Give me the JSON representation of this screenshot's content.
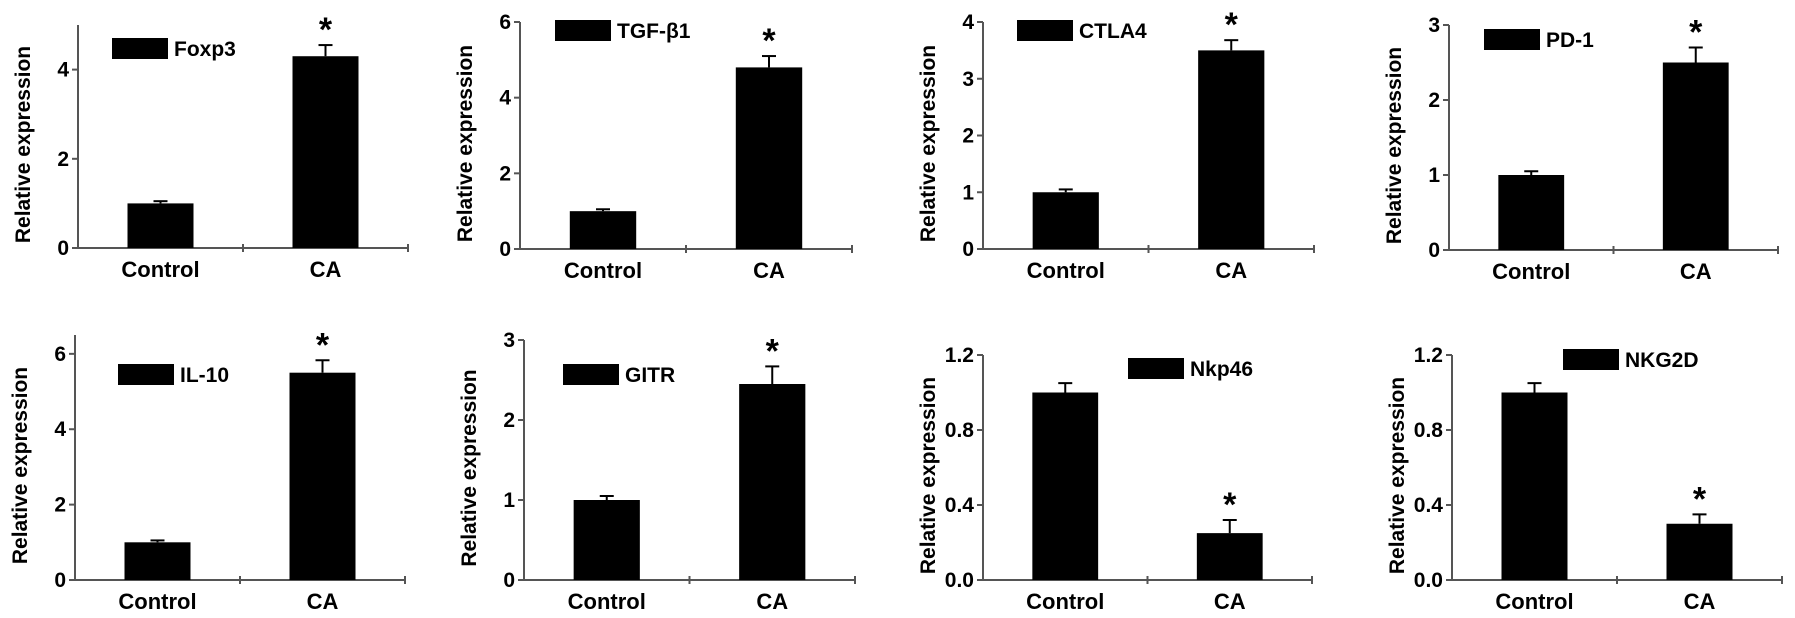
{
  "chart_data": [
    {
      "type": "bar",
      "legend": "Foxp3",
      "ylabel": "Relative expression",
      "categories": [
        "Control",
        "CA"
      ],
      "values": [
        1.0,
        4.3
      ],
      "errors": [
        0.05,
        0.25
      ],
      "significance": [
        "",
        "*"
      ],
      "ylim": [
        0,
        5
      ],
      "yticks": [
        "0",
        "2",
        "4"
      ],
      "legend_position": "top-left",
      "color": "#000000"
    },
    {
      "type": "bar",
      "legend": "TGF-β1",
      "ylabel": "Relative expression",
      "categories": [
        "Control",
        "CA"
      ],
      "values": [
        1.0,
        4.8
      ],
      "errors": [
        0.05,
        0.3
      ],
      "significance": [
        "",
        "*"
      ],
      "ylim": [
        0,
        6
      ],
      "yticks": [
        "0",
        "2",
        "4",
        "6"
      ],
      "legend_position": "top-left",
      "color": "#000000"
    },
    {
      "type": "bar",
      "legend": "CTLA4",
      "ylabel": "Relative expression",
      "categories": [
        "Control",
        "CA"
      ],
      "values": [
        1.0,
        3.5
      ],
      "errors": [
        0.05,
        0.18
      ],
      "significance": [
        "",
        "*"
      ],
      "ylim": [
        0,
        4
      ],
      "yticks": [
        "0",
        "1",
        "2",
        "3",
        "4"
      ],
      "legend_position": "top-left",
      "color": "#000000"
    },
    {
      "type": "bar",
      "legend": "PD-1",
      "ylabel": "Relative expression",
      "categories": [
        "Control",
        "CA"
      ],
      "values": [
        1.0,
        2.5
      ],
      "errors": [
        0.05,
        0.2
      ],
      "significance": [
        "",
        "*"
      ],
      "ylim": [
        0,
        3
      ],
      "yticks": [
        "0",
        "1",
        "2",
        "3"
      ],
      "legend_position": "top-left",
      "color": "#000000"
    },
    {
      "type": "bar",
      "legend": "IL-10",
      "ylabel": "Relative expression",
      "categories": [
        "Control",
        "CA"
      ],
      "values": [
        1.0,
        5.5
      ],
      "errors": [
        0.05,
        0.33
      ],
      "significance": [
        "",
        "*"
      ],
      "ylim": [
        0,
        6.5
      ],
      "yticks": [
        "0",
        "2",
        "4",
        "6"
      ],
      "legend_position": "top-left",
      "color": "#000000"
    },
    {
      "type": "bar",
      "legend": "GITR",
      "ylabel": "Relative expression",
      "categories": [
        "Control",
        "CA"
      ],
      "values": [
        1.0,
        2.45
      ],
      "errors": [
        0.05,
        0.22
      ],
      "significance": [
        "",
        "*"
      ],
      "ylim": [
        0,
        3
      ],
      "yticks": [
        "0",
        "1",
        "2",
        "3"
      ],
      "legend_position": "top-left",
      "color": "#000000"
    },
    {
      "type": "bar",
      "legend": "Nkp46",
      "ylabel": "Relative expression",
      "categories": [
        "Control",
        "CA"
      ],
      "values": [
        1.0,
        0.25
      ],
      "errors": [
        0.05,
        0.07
      ],
      "significance": [
        "",
        "*"
      ],
      "ylim": [
        0,
        1.2
      ],
      "yticks": [
        "0.0",
        "0.4",
        "0.8",
        "1.2"
      ],
      "legend_position": "top-right",
      "color": "#000000"
    },
    {
      "type": "bar",
      "legend": "NKG2D",
      "ylabel": "Relative expression",
      "categories": [
        "Control",
        "CA"
      ],
      "values": [
        1.0,
        0.3
      ],
      "errors": [
        0.05,
        0.05
      ],
      "significance": [
        "",
        "*"
      ],
      "ylim": [
        0,
        1.2
      ],
      "yticks": [
        "0.0",
        "0.4",
        "0.8",
        "1.2"
      ],
      "legend_position": "top-right",
      "color": "#000000"
    }
  ]
}
